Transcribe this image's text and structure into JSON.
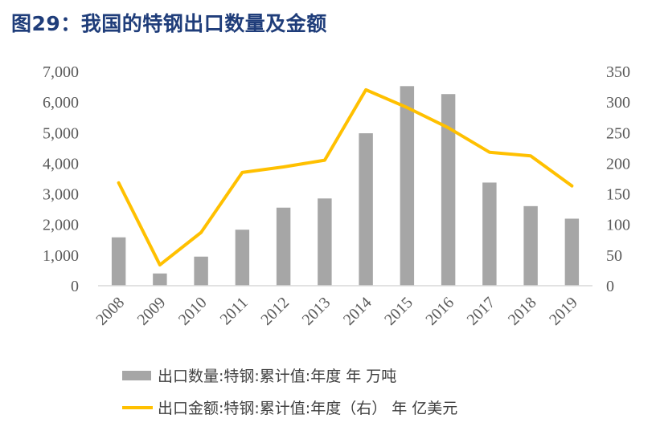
{
  "title": "图29：我国的特钢出口数量及金额",
  "chart_data": {
    "type": "bar+line",
    "categories": [
      "2008",
      "2009",
      "2010",
      "2011",
      "2012",
      "2013",
      "2014",
      "2015",
      "2016",
      "2017",
      "2018",
      "2019"
    ],
    "series": [
      {
        "name": "出口数量:特钢:累计值:年度 年 万吨",
        "type": "bar",
        "axis": "left",
        "color": "#a6a6a6",
        "values": [
          1580,
          400,
          950,
          1830,
          2550,
          2850,
          4980,
          6520,
          6260,
          3370,
          2600,
          2190
        ]
      },
      {
        "name": "出口金额:特钢:累计值:年度（右） 年 亿美元",
        "type": "line",
        "axis": "right",
        "color": "#ffc000",
        "values": [
          168,
          34,
          87,
          185,
          194,
          205,
          320,
          291,
          258,
          218,
          212,
          163
        ]
      }
    ],
    "y_left": {
      "min": 0,
      "max": 7000,
      "step": 1000,
      "ticks": [
        "0",
        "1,000",
        "2,000",
        "3,000",
        "4,000",
        "5,000",
        "6,000",
        "7,000"
      ]
    },
    "y_right": {
      "min": 0,
      "max": 350,
      "step": 50,
      "ticks": [
        "0",
        "50",
        "100",
        "150",
        "200",
        "250",
        "300",
        "350"
      ]
    },
    "grid": false,
    "legend_position": "bottom"
  }
}
